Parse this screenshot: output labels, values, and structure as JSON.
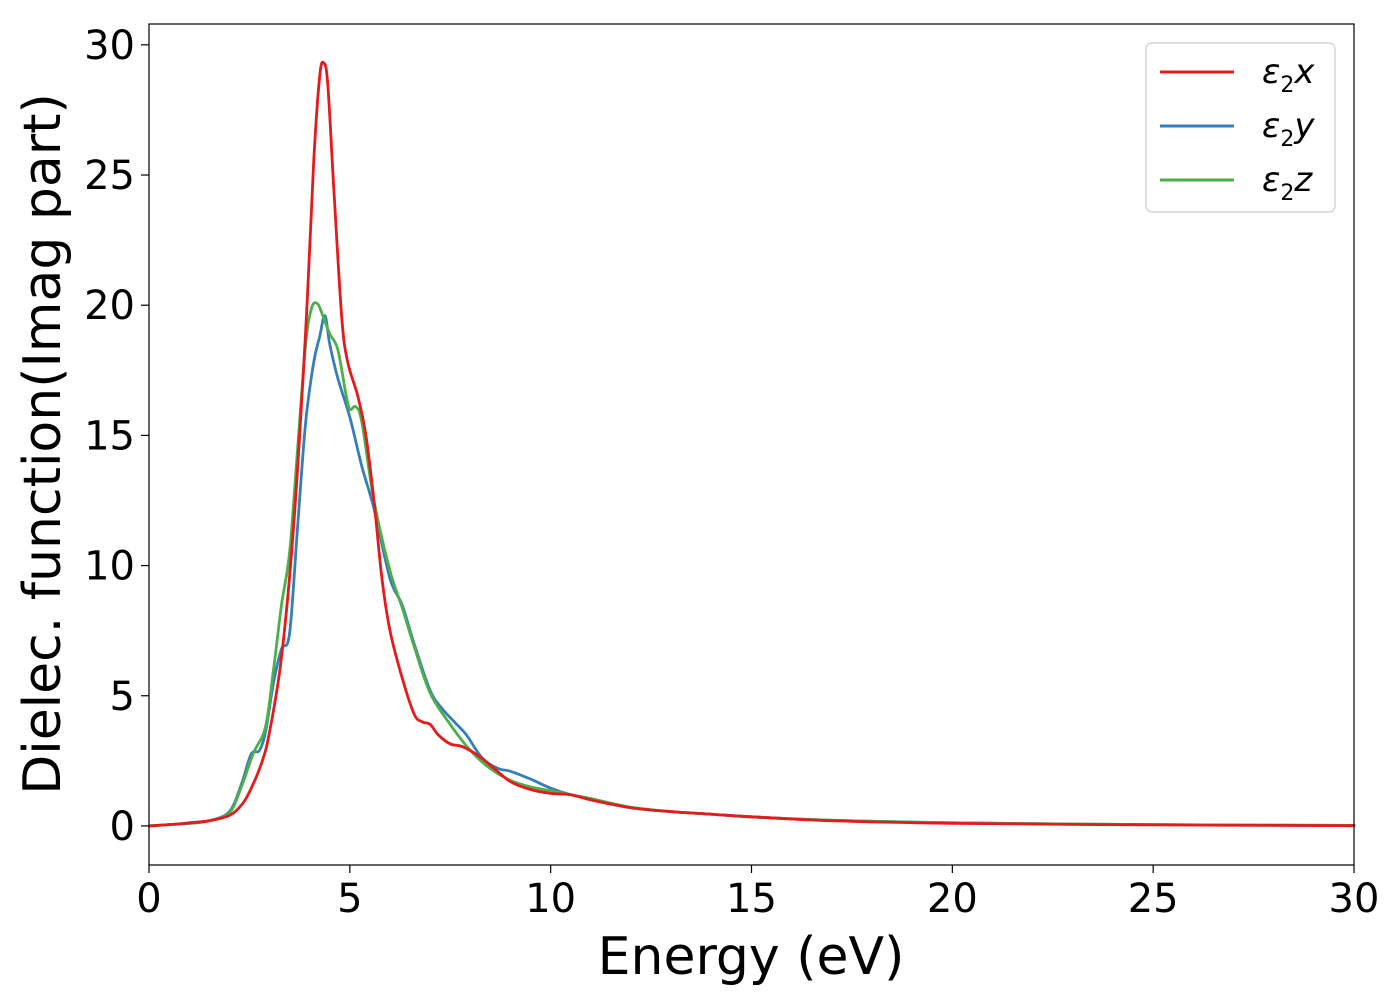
{
  "chart_data": {
    "type": "line",
    "xlabel": "Energy (eV)",
    "ylabel": "Dielec. function(Imag part)",
    "xlim": [
      0,
      30
    ],
    "ylim": [
      -1.5,
      30.8
    ],
    "xticks": [
      0,
      5,
      10,
      15,
      20,
      25,
      30
    ],
    "yticks": [
      0,
      5,
      10,
      15,
      20,
      25,
      30
    ],
    "grid": false,
    "legend_position": "top-right",
    "series": [
      {
        "name": "ε2x",
        "legend_main": "ε",
        "legend_sub": "2",
        "legend_var": "x",
        "color": "#e41a1c",
        "x": [
          0,
          0.5,
          1.0,
          1.5,
          2.0,
          2.3,
          2.5,
          2.8,
          3.0,
          3.3,
          3.6,
          3.9,
          4.1,
          4.25,
          4.35,
          4.45,
          4.6,
          4.8,
          4.95,
          5.2,
          5.4,
          5.6,
          5.8,
          6.0,
          6.3,
          6.6,
          6.8,
          7.0,
          7.2,
          7.5,
          7.8,
          8.2,
          8.6,
          9.0,
          9.5,
          10.0,
          10.5,
          11.0,
          12.0,
          13.0,
          14.0,
          15.0,
          17.0,
          20.0,
          25.0,
          30.0
        ],
        "values": [
          0.0,
          0.05,
          0.12,
          0.2,
          0.4,
          0.8,
          1.3,
          2.4,
          3.6,
          6.5,
          11.5,
          19.0,
          25.5,
          28.8,
          29.3,
          28.5,
          24.5,
          19.5,
          17.8,
          16.5,
          15.0,
          12.5,
          9.5,
          7.5,
          5.7,
          4.3,
          4.0,
          3.9,
          3.5,
          3.15,
          3.05,
          2.7,
          2.2,
          1.7,
          1.4,
          1.25,
          1.2,
          1.0,
          0.7,
          0.55,
          0.45,
          0.35,
          0.2,
          0.1,
          0.04,
          0.01
        ]
      },
      {
        "name": "ε2y",
        "legend_main": "ε",
        "legend_sub": "2",
        "legend_var": "y",
        "color": "#377eb8",
        "x": [
          0,
          0.5,
          1.0,
          1.5,
          2.0,
          2.3,
          2.5,
          2.6,
          2.75,
          2.9,
          3.1,
          3.3,
          3.5,
          3.7,
          3.9,
          4.1,
          4.25,
          4.38,
          4.5,
          4.7,
          5.0,
          5.3,
          5.6,
          6.0,
          6.3,
          6.6,
          7.0,
          7.3,
          7.6,
          7.9,
          8.3,
          8.7,
          9.0,
          9.5,
          10.0,
          10.5,
          11.0,
          12.0,
          13.0,
          14.0,
          15.0,
          17.0,
          20.0,
          25.0,
          30.0
        ],
        "values": [
          0.0,
          0.05,
          0.1,
          0.2,
          0.55,
          1.6,
          2.6,
          2.85,
          2.9,
          3.6,
          5.5,
          6.8,
          7.4,
          11.5,
          15.5,
          17.8,
          18.8,
          19.6,
          18.5,
          17.2,
          15.7,
          13.8,
          12.2,
          9.5,
          8.5,
          7.0,
          5.2,
          4.5,
          4.0,
          3.5,
          2.6,
          2.2,
          2.1,
          1.8,
          1.45,
          1.2,
          1.05,
          0.7,
          0.55,
          0.45,
          0.35,
          0.22,
          0.12,
          0.05,
          0.02
        ]
      },
      {
        "name": "ε2z",
        "legend_main": "ε",
        "legend_sub": "2",
        "legend_var": "z",
        "color": "#4daf4a",
        "x": [
          0,
          0.5,
          1.0,
          1.5,
          2.0,
          2.3,
          2.6,
          2.9,
          3.1,
          3.3,
          3.5,
          3.7,
          3.9,
          4.05,
          4.2,
          4.35,
          4.5,
          4.7,
          4.9,
          5.0,
          5.15,
          5.3,
          5.6,
          6.0,
          6.3,
          6.6,
          7.0,
          7.5,
          8.0,
          8.5,
          9.0,
          9.5,
          10.0,
          10.5,
          11.0,
          12.0,
          13.0,
          14.0,
          15.0,
          17.0,
          20.0,
          25.0,
          30.0
        ],
        "values": [
          0.0,
          0.05,
          0.1,
          0.2,
          0.5,
          1.5,
          2.8,
          3.8,
          6.0,
          8.5,
          10.5,
          14.5,
          18.5,
          19.9,
          20.05,
          19.5,
          18.9,
          18.3,
          16.6,
          16.0,
          16.1,
          15.5,
          12.5,
          9.8,
          8.4,
          6.9,
          5.1,
          3.9,
          2.9,
          2.2,
          1.75,
          1.5,
          1.35,
          1.2,
          1.05,
          0.72,
          0.55,
          0.45,
          0.35,
          0.22,
          0.12,
          0.05,
          0.02
        ]
      }
    ]
  }
}
